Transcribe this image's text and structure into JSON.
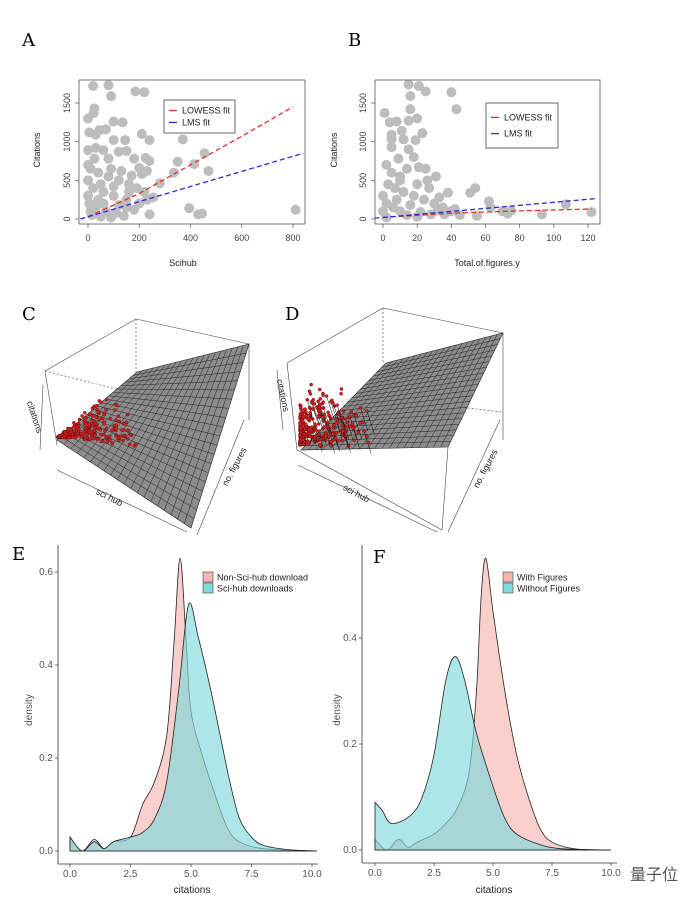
{
  "chart_data": [
    {
      "panel": "A",
      "type": "scatter",
      "xlabel": "Scihub",
      "ylabel": "Citations",
      "xlim": [
        -30,
        840
      ],
      "ylim": [
        -40,
        1780
      ],
      "xticks": [
        "0",
        "200",
        "400",
        "600",
        "800"
      ],
      "yticks": [
        "0",
        "500",
        "1000",
        "1500"
      ],
      "point_color": "#bdbdbd",
      "points": [
        [
          0,
          1300
        ],
        [
          5,
          1120
        ],
        [
          20,
          1720
        ],
        [
          25,
          1430
        ],
        [
          22,
          1370
        ],
        [
          80,
          1730
        ],
        [
          90,
          1590
        ],
        [
          185,
          1650
        ],
        [
          220,
          1640
        ],
        [
          30,
          1090
        ],
        [
          45,
          1150
        ],
        [
          70,
          1160
        ],
        [
          100,
          1260
        ],
        [
          135,
          1250
        ],
        [
          100,
          1020
        ],
        [
          145,
          1020
        ],
        [
          210,
          1100
        ],
        [
          240,
          1020
        ],
        [
          0,
          890
        ],
        [
          30,
          920
        ],
        [
          60,
          890
        ],
        [
          120,
          870
        ],
        [
          150,
          880
        ],
        [
          180,
          780
        ],
        [
          225,
          790
        ],
        [
          240,
          750
        ],
        [
          25,
          780
        ],
        [
          80,
          780
        ],
        [
          370,
          1030
        ],
        [
          350,
          740
        ],
        [
          415,
          710
        ],
        [
          455,
          850
        ],
        [
          470,
          620
        ],
        [
          335,
          600
        ],
        [
          280,
          460
        ],
        [
          255,
          280
        ],
        [
          210,
          580
        ],
        [
          200,
          660
        ],
        [
          230,
          620
        ],
        [
          395,
          140
        ],
        [
          430,
          60
        ],
        [
          445,
          70
        ],
        [
          240,
          60
        ],
        [
          810,
          120
        ],
        [
          10,
          650
        ],
        [
          40,
          600
        ],
        [
          80,
          550
        ],
        [
          120,
          500
        ],
        [
          160,
          450
        ],
        [
          20,
          400
        ],
        [
          60,
          350
        ],
        [
          100,
          300
        ],
        [
          150,
          250
        ],
        [
          200,
          200
        ],
        [
          5,
          200
        ],
        [
          30,
          150
        ],
        [
          70,
          100
        ],
        [
          110,
          80
        ],
        [
          180,
          120
        ],
        [
          15,
          50
        ],
        [
          50,
          30
        ],
        [
          90,
          20
        ],
        [
          140,
          40
        ],
        [
          0,
          300
        ],
        [
          0,
          500
        ],
        [
          0,
          700
        ],
        [
          50,
          450
        ],
        [
          90,
          650
        ],
        [
          130,
          620
        ],
        [
          170,
          560
        ],
        [
          10,
          100
        ],
        [
          40,
          250
        ],
        [
          120,
          180
        ],
        [
          160,
          350
        ],
        [
          190,
          400
        ],
        [
          60,
          200
        ],
        [
          100,
          420
        ],
        [
          150,
          150
        ],
        [
          220,
          350
        ],
        [
          230,
          250
        ]
      ],
      "fits": [
        {
          "name": "LOWESS fit",
          "color": "#e03030",
          "points": [
            [
              0,
              30
            ],
            [
              200,
              330
            ],
            [
              400,
              700
            ],
            [
              600,
              1070
            ],
            [
              800,
              1450
            ]
          ]
        },
        {
          "name": "LMS fit",
          "color": "#2a2ae0",
          "points": [
            [
              -30,
              0
            ],
            [
              840,
              850
            ]
          ]
        }
      ]
    },
    {
      "panel": "B",
      "type": "scatter",
      "xlabel": "Total.of.figures.y",
      "ylabel": "Citations",
      "xlim": [
        -5,
        126
      ],
      "ylim": [
        -40,
        1780
      ],
      "xticks": [
        "0",
        "20",
        "40",
        "60",
        "80",
        "100",
        "120"
      ],
      "yticks": [
        "0",
        "500",
        "1000",
        "1500"
      ],
      "point_color": "#bdbdbd",
      "points": [
        [
          1,
          1370
        ],
        [
          4,
          1250
        ],
        [
          8,
          1260
        ],
        [
          15,
          1740
        ],
        [
          21,
          1720
        ],
        [
          25,
          1650
        ],
        [
          40,
          1640
        ],
        [
          43,
          1420
        ],
        [
          16,
          1590
        ],
        [
          16,
          1420
        ],
        [
          20,
          1300
        ],
        [
          15,
          1270
        ],
        [
          23,
          1110
        ],
        [
          5,
          1090
        ],
        [
          5,
          1030
        ],
        [
          11,
          1140
        ],
        [
          12,
          1030
        ],
        [
          19,
          1020
        ],
        [
          5,
          930
        ],
        [
          15,
          900
        ],
        [
          18,
          800
        ],
        [
          9,
          780
        ],
        [
          25,
          650
        ],
        [
          21,
          670
        ],
        [
          31,
          550
        ],
        [
          38,
          340
        ],
        [
          51,
          340
        ],
        [
          54,
          400
        ],
        [
          62,
          230
        ],
        [
          63,
          150
        ],
        [
          70,
          100
        ],
        [
          73,
          70
        ],
        [
          75,
          110
        ],
        [
          93,
          60
        ],
        [
          107,
          190
        ],
        [
          122,
          90
        ],
        [
          55,
          40
        ],
        [
          45,
          50
        ],
        [
          2,
          700
        ],
        [
          5,
          600
        ],
        [
          10,
          550
        ],
        [
          3,
          450
        ],
        [
          7,
          400
        ],
        [
          12,
          350
        ],
        [
          18,
          300
        ],
        [
          24,
          250
        ],
        [
          30,
          200
        ],
        [
          35,
          150
        ],
        [
          40,
          100
        ],
        [
          2,
          200
        ],
        [
          6,
          150
        ],
        [
          10,
          100
        ],
        [
          14,
          50
        ],
        [
          20,
          30
        ],
        [
          28,
          60
        ],
        [
          32,
          120
        ],
        [
          0,
          300
        ],
        [
          0,
          100
        ],
        [
          2,
          20
        ],
        [
          10,
          500
        ],
        [
          14,
          650
        ],
        [
          20,
          450
        ],
        [
          27,
          400
        ],
        [
          33,
          280
        ],
        [
          8,
          250
        ],
        [
          16,
          180
        ],
        [
          22,
          90
        ],
        [
          42,
          130
        ],
        [
          36,
          60
        ],
        [
          26,
          500
        ]
      ],
      "fits": [
        {
          "name": "LOWESS fit",
          "color": "#e03030",
          "points": [
            [
              0,
              20
            ],
            [
              40,
              75
            ],
            [
              80,
              105
            ],
            [
              122,
              130
            ]
          ]
        },
        {
          "name": "LMS fit",
          "color": "#2a2ae0",
          "points": [
            [
              -5,
              10
            ],
            [
              125,
              265
            ]
          ]
        }
      ]
    },
    {
      "panel": "C",
      "type": "surface3d",
      "axis_labels": {
        "z": "citations",
        "x": "sci hub",
        "y": "no. figures"
      },
      "surface_color": "#8c8c8c",
      "point_color": "#d42020"
    },
    {
      "panel": "D",
      "type": "surface3d",
      "axis_labels": {
        "z": "citations",
        "x": "sci hub",
        "y": "no. figures"
      },
      "surface_color": "#8c8c8c",
      "point_color": "#d42020"
    },
    {
      "panel": "E",
      "type": "area",
      "xlabel": "citations",
      "ylabel": "density",
      "xlim": [
        0,
        10.2
      ],
      "ylim": [
        0,
        0.63
      ],
      "xticks": [
        0,
        2.5,
        5,
        7.5,
        10
      ],
      "xtick_labels": [
        "0.0",
        "2.5",
        "5.0",
        "7.5",
        "10.0"
      ],
      "yticks": [
        0,
        0.2,
        0.4,
        0.6
      ],
      "ytick_labels": [
        "0.0",
        "0.2",
        "0.4",
        "0.6"
      ],
      "legend": "top-right",
      "series": [
        {
          "name": "Non-Sci-hub download",
          "color": "#f4b6b0",
          "points": [
            [
              0,
              0.03
            ],
            [
              0.5,
              0.0
            ],
            [
              1,
              0.025
            ],
            [
              1.4,
              0.005
            ],
            [
              1.8,
              0.02
            ],
            [
              2.5,
              0.03
            ],
            [
              3,
              0.1
            ],
            [
              3.5,
              0.15
            ],
            [
              4,
              0.25
            ],
            [
              4.3,
              0.45
            ],
            [
              4.55,
              0.63
            ],
            [
              4.8,
              0.45
            ],
            [
              5,
              0.3
            ],
            [
              5.5,
              0.2
            ],
            [
              6,
              0.12
            ],
            [
              6.5,
              0.05
            ],
            [
              7,
              0.02
            ],
            [
              8,
              0.005
            ],
            [
              10.2,
              0
            ]
          ]
        },
        {
          "name": "Sci-hub downloads",
          "color": "#7fd8dc",
          "points": [
            [
              0,
              0.03
            ],
            [
              0.5,
              0.0
            ],
            [
              1,
              0.02
            ],
            [
              1.4,
              0.005
            ],
            [
              1.8,
              0.02
            ],
            [
              2.5,
              0.03
            ],
            [
              3,
              0.04
            ],
            [
              3.5,
              0.07
            ],
            [
              4,
              0.15
            ],
            [
              4.5,
              0.35
            ],
            [
              4.9,
              0.53
            ],
            [
              5.3,
              0.46
            ],
            [
              5.8,
              0.35
            ],
            [
              6.2,
              0.25
            ],
            [
              6.6,
              0.15
            ],
            [
              7,
              0.07
            ],
            [
              7.5,
              0.03
            ],
            [
              8,
              0.012
            ],
            [
              9,
              0.003
            ],
            [
              10.2,
              0
            ]
          ]
        }
      ]
    },
    {
      "panel": "F",
      "type": "area",
      "xlabel": "citations",
      "ylabel": "density",
      "xlim": [
        0,
        10
      ],
      "ylim": [
        0,
        0.55
      ],
      "xticks": [
        0,
        2.5,
        5,
        7.5,
        10
      ],
      "xtick_labels": [
        "0.0",
        "2.5",
        "5.0",
        "7.5",
        "10.0"
      ],
      "yticks": [
        0,
        0.2,
        0.4
      ],
      "ytick_labels": [
        "0.0",
        "0.2",
        "0.4"
      ],
      "legend": "top-right",
      "series": [
        {
          "name": "With Figures",
          "color": "#f4b6b0",
          "points": [
            [
              0,
              0.02
            ],
            [
              0.5,
              0
            ],
            [
              1,
              0.02
            ],
            [
              1.4,
              0.005
            ],
            [
              1.8,
              0.015
            ],
            [
              2.5,
              0.03
            ],
            [
              3,
              0.05
            ],
            [
              3.5,
              0.08
            ],
            [
              4,
              0.15
            ],
            [
              4.3,
              0.3
            ],
            [
              4.5,
              0.48
            ],
            [
              4.7,
              0.55
            ],
            [
              5,
              0.45
            ],
            [
              5.5,
              0.3
            ],
            [
              6,
              0.18
            ],
            [
              6.5,
              0.1
            ],
            [
              7,
              0.04
            ],
            [
              7.5,
              0.015
            ],
            [
              8.5,
              0.002
            ],
            [
              10,
              0
            ]
          ]
        },
        {
          "name": "Without Figures",
          "color": "#7fd8dc",
          "points": [
            [
              0,
              0.09
            ],
            [
              0.3,
              0.075
            ],
            [
              0.7,
              0.05
            ],
            [
              1.5,
              0.065
            ],
            [
              2,
              0.1
            ],
            [
              2.5,
              0.18
            ],
            [
              3,
              0.32
            ],
            [
              3.4,
              0.365
            ],
            [
              3.8,
              0.32
            ],
            [
              4.3,
              0.22
            ],
            [
              5,
              0.12
            ],
            [
              5.5,
              0.06
            ],
            [
              6,
              0.03
            ],
            [
              7,
              0.01
            ],
            [
              8,
              0.002
            ],
            [
              10,
              0
            ]
          ]
        }
      ]
    }
  ],
  "panel_labels": [
    "A",
    "B",
    "C",
    "D",
    "E",
    "F"
  ],
  "watermark": "量子位"
}
